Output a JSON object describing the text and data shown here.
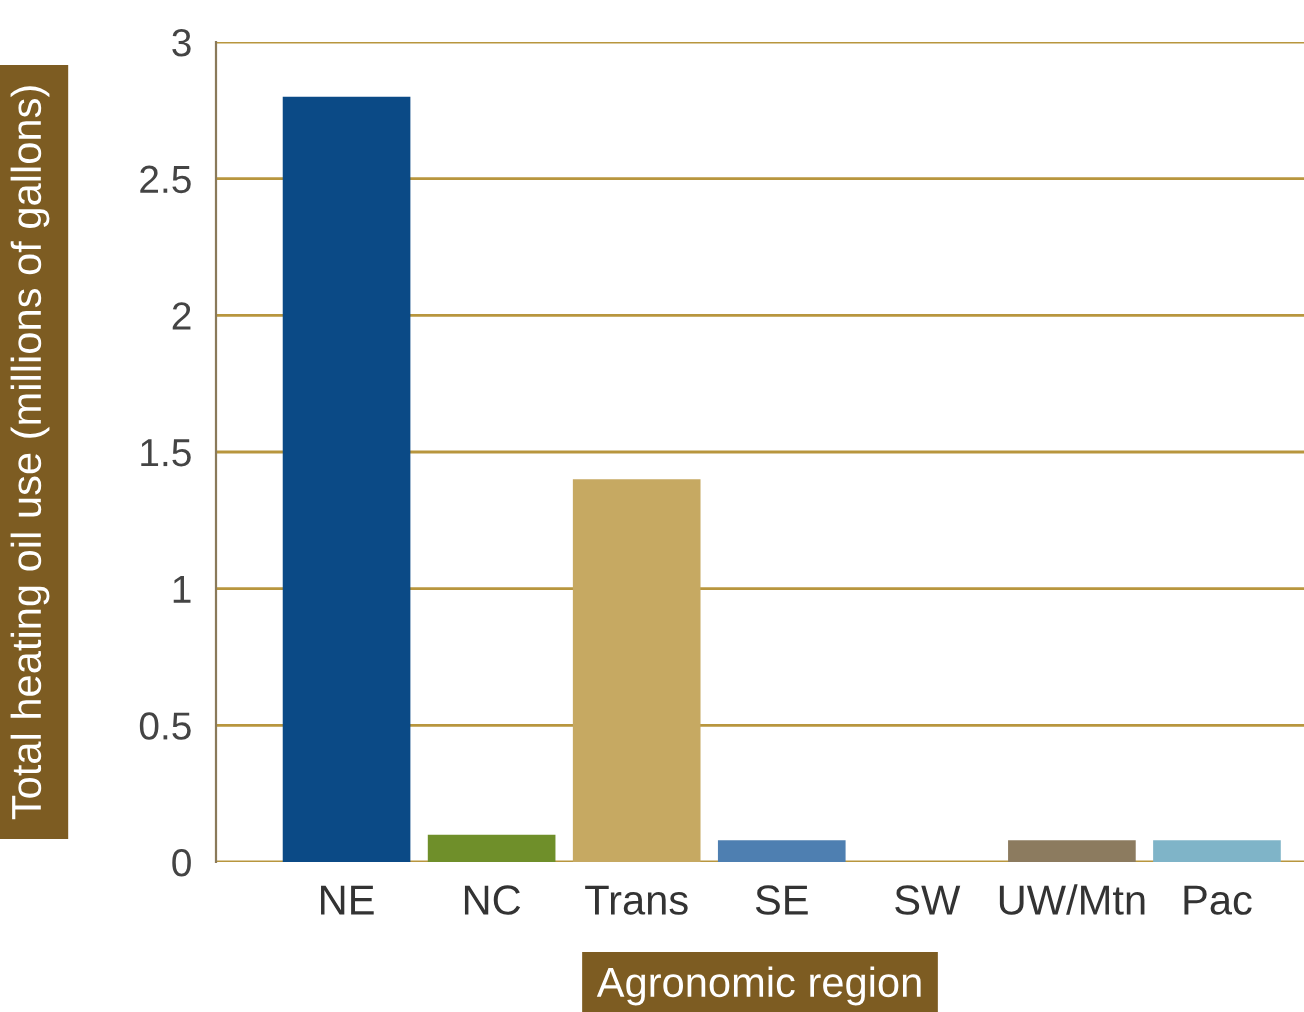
{
  "chart_data": {
    "type": "bar",
    "xlabel": "Agronomic region",
    "ylabel": "Total heating oil use (millions of gallons)",
    "categories": [
      "NE",
      "NC",
      "Trans",
      "SE",
      "SW",
      "UW/Mtn",
      "Pac"
    ],
    "values": [
      2.8,
      0.1,
      1.4,
      0.08,
      0,
      0.08,
      0.08
    ],
    "colors": [
      "#0b4a86",
      "#6f8f2a",
      "#c6a962",
      "#4e7fb1",
      null,
      "#8c7b5f",
      "#7fb4c8"
    ],
    "ylim": [
      0,
      3
    ],
    "yticks": [
      0,
      0.5,
      1,
      1.5,
      2,
      2.5,
      3
    ],
    "grid": "y",
    "legend": false
  }
}
